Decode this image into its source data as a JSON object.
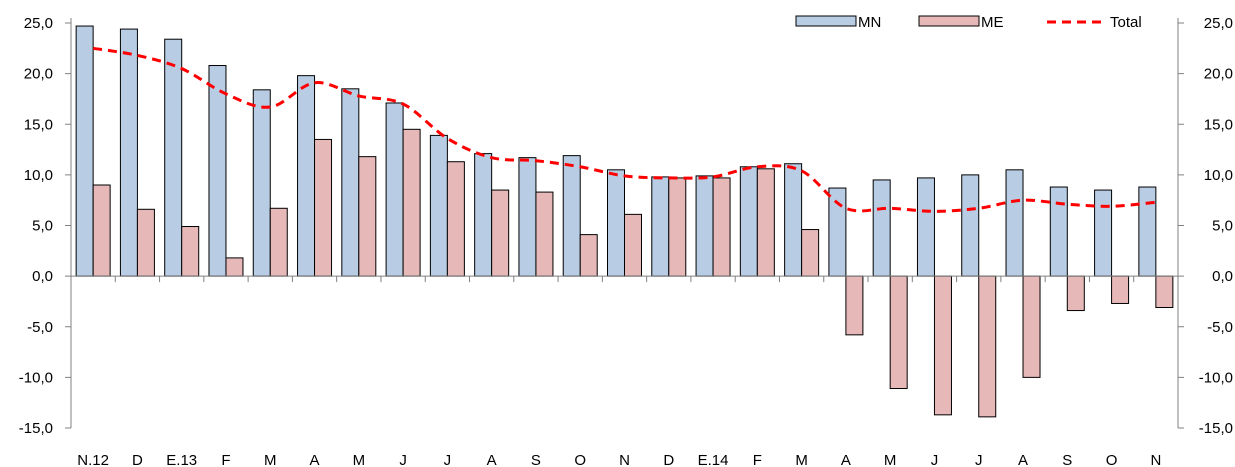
{
  "chart_data": {
    "type": "bar",
    "categories": [
      "N.12",
      "D",
      "E.13",
      "F",
      "M",
      "A",
      "M",
      "J",
      "J",
      "A",
      "S",
      "O",
      "N",
      "D",
      "E.14",
      "F",
      "M",
      "A",
      "M",
      "J",
      "J",
      "A",
      "S",
      "O",
      "N"
    ],
    "series": [
      {
        "name": "MN",
        "type": "bar",
        "color": "#b8cce4",
        "values": [
          24.7,
          24.4,
          23.4,
          20.8,
          18.4,
          19.8,
          18.5,
          17.1,
          13.9,
          12.1,
          11.7,
          11.9,
          10.5,
          9.8,
          9.9,
          10.8,
          11.1,
          8.7,
          9.5,
          9.7,
          10.0,
          10.5,
          8.8,
          8.5,
          8.8
        ]
      },
      {
        "name": "ME",
        "type": "bar",
        "color": "#e6b9b8",
        "values": [
          9.0,
          6.6,
          4.9,
          1.8,
          6.7,
          13.5,
          11.8,
          14.5,
          11.3,
          8.5,
          8.3,
          4.1,
          6.1,
          9.7,
          9.7,
          10.6,
          4.6,
          -5.8,
          -11.1,
          -13.7,
          -13.9,
          -10.0,
          -3.4,
          -2.7,
          -3.1
        ]
      },
      {
        "name": "Total",
        "type": "line",
        "color": "#ff0000",
        "values": [
          22.5,
          21.8,
          20.5,
          18.0,
          16.7,
          19.1,
          17.8,
          17.0,
          13.6,
          11.7,
          11.4,
          10.8,
          9.9,
          9.7,
          9.8,
          10.8,
          10.4,
          6.7,
          6.7,
          6.4,
          6.7,
          7.5,
          7.1,
          6.9,
          7.3
        ]
      }
    ],
    "ylim": [
      -15,
      25
    ],
    "yticks": [
      "25,0",
      "20,0",
      "15,0",
      "10,0",
      "5,0",
      "0,0",
      "-5,0",
      "-10,0",
      "-15,0"
    ],
    "ytick_values": [
      25,
      20,
      15,
      10,
      5,
      0,
      -5,
      -10,
      -15
    ],
    "secondary_yaxis": true,
    "legend_position": "top-right",
    "grid": false
  }
}
